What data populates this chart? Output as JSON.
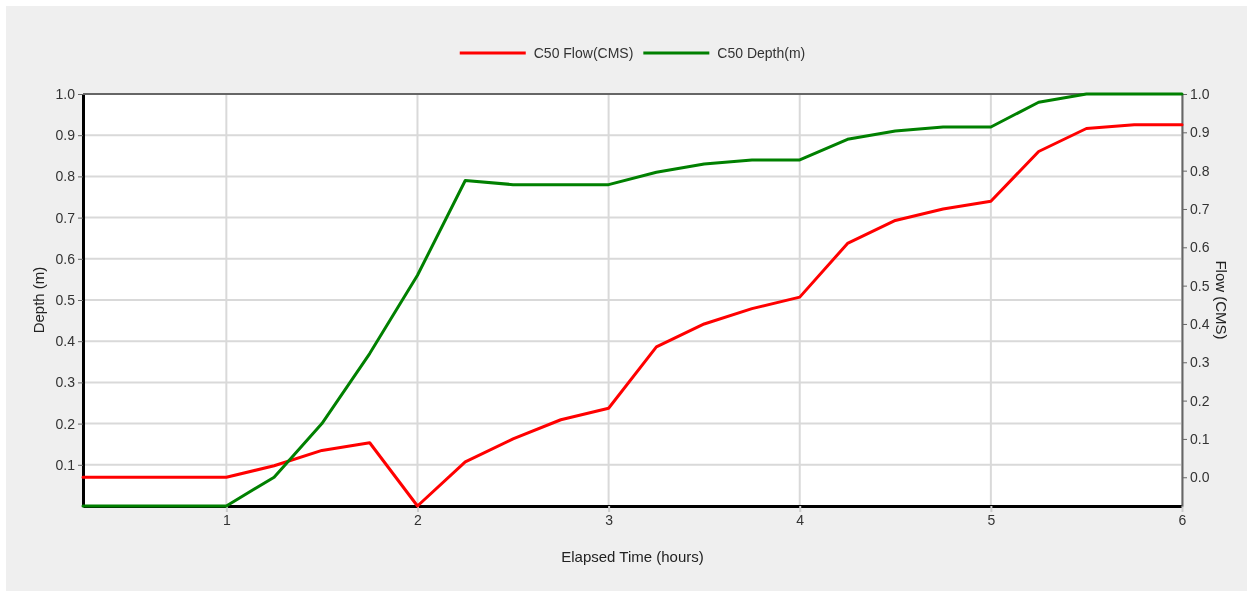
{
  "chart_data": {
    "type": "line",
    "xlabel": "Elapsed Time (hours)",
    "ylabel": "Depth (m)",
    "y2label": "Flow (CMS)",
    "x": [
      0.25,
      0.5,
      0.75,
      1,
      1.25,
      1.5,
      1.75,
      2,
      2.25,
      2.5,
      2.75,
      3,
      3.25,
      3.5,
      3.75,
      4,
      4.25,
      4.5,
      4.75,
      5,
      5.25,
      5.5,
      5.75,
      6
    ],
    "series": [
      {
        "name": "C50 Flow(CMS)",
        "color": "#ff0000",
        "axis": "y2",
        "values": [
          0,
          0,
          0,
          0,
          0.03,
          0.07,
          0.09,
          -0.075,
          0.04,
          0.1,
          0.15,
          0.18,
          0.34,
          0.4,
          0.44,
          0.47,
          0.61,
          0.67,
          0.7,
          0.72,
          0.85,
          0.91,
          0.92,
          0.92
        ]
      },
      {
        "name": "C50 Depth(m)",
        "color": "#008000",
        "values": [
          0,
          0,
          0,
          0,
          0.07,
          0.2,
          0.37,
          0.56,
          0.79,
          0.78,
          0.78,
          0.78,
          0.81,
          0.83,
          0.84,
          0.84,
          0.89,
          0.91,
          0.92,
          0.92,
          0.98,
          1,
          1,
          1
        ]
      }
    ],
    "xlim": [
      0.25,
      6
    ],
    "xticks": [
      1,
      2,
      3,
      4,
      5,
      6
    ],
    "ylim": [
      0,
      1
    ],
    "yticks": [
      0.1,
      0.2,
      0.3,
      0.4,
      0.5,
      0.6,
      0.7,
      0.8,
      0.9,
      {
        "value": 1,
        "label": "1.0"
      }
    ],
    "y2lim": [
      -0.075,
      1
    ],
    "y2ticks": [
      {
        "value": 0,
        "label": "0.0"
      },
      0.1,
      0.2,
      0.3,
      0.4,
      0.5,
      0.6,
      0.7,
      0.8,
      0.9,
      {
        "value": 1,
        "label": "1.0"
      }
    ],
    "grid": true,
    "legend": "top",
    "marker": "none",
    "line_style": "solid"
  }
}
